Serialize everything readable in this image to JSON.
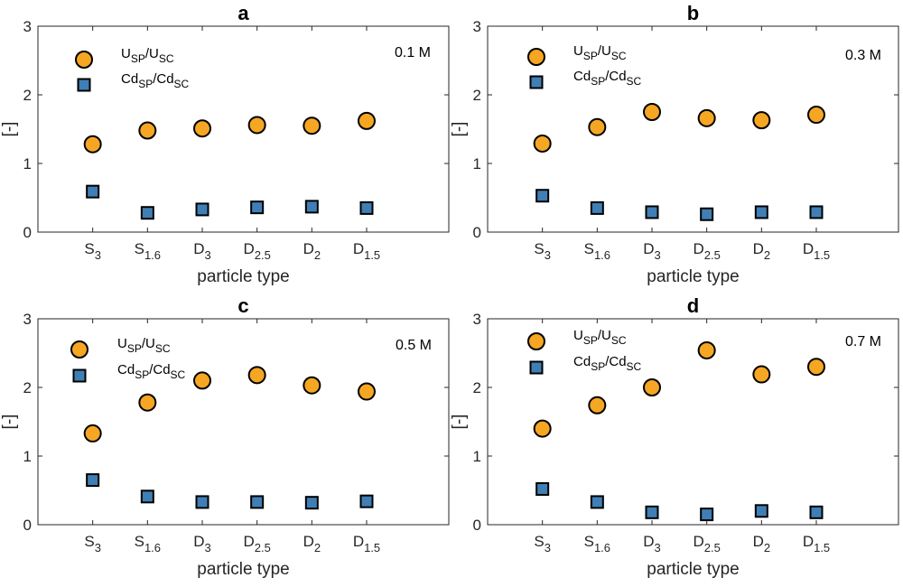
{
  "chart_data": [
    {
      "type": "scatter",
      "panel": "a",
      "title": "a",
      "annotation": "0.1 M",
      "xlabel": "particle type",
      "ylabel": "[-]",
      "ylim": [
        0,
        3
      ],
      "yticks": [
        "0",
        "1",
        "2",
        "3"
      ],
      "categories": [
        {
          "main": "S",
          "sub": "3"
        },
        {
          "main": "S",
          "sub": "1.6"
        },
        {
          "main": "D",
          "sub": "3"
        },
        {
          "main": "D",
          "sub": "2.5"
        },
        {
          "main": "D",
          "sub": "2"
        },
        {
          "main": "D",
          "sub": "1.5"
        }
      ],
      "series": [
        {
          "name": "U_SP/U_SC",
          "legend_main": [
            "U",
            "/U"
          ],
          "legend_sub": [
            "SP",
            "SC"
          ],
          "marker": "circle",
          "color": "#F5A623",
          "values": [
            1.28,
            1.48,
            1.51,
            1.56,
            1.55,
            1.62
          ]
        },
        {
          "name": "Cd_SP/Cd_SC",
          "legend_main": [
            "Cd",
            "/Cd"
          ],
          "legend_sub": [
            "SP",
            "SC"
          ],
          "marker": "square",
          "color": "#3F7FB5",
          "values": [
            0.59,
            0.28,
            0.33,
            0.36,
            0.37,
            0.35
          ]
        }
      ]
    },
    {
      "type": "scatter",
      "panel": "b",
      "title": "b",
      "annotation": "0.3 M",
      "xlabel": "particle type",
      "ylabel": "[-]",
      "ylim": [
        0,
        3
      ],
      "yticks": [
        "0",
        "1",
        "2",
        "3"
      ],
      "categories": [
        {
          "main": "S",
          "sub": "3"
        },
        {
          "main": "S",
          "sub": "1.6"
        },
        {
          "main": "D",
          "sub": "3"
        },
        {
          "main": "D",
          "sub": "2.5"
        },
        {
          "main": "D",
          "sub": "2"
        },
        {
          "main": "D",
          "sub": "1.5"
        }
      ],
      "series": [
        {
          "name": "U_SP/U_SC",
          "legend_main": [
            "U",
            "/U"
          ],
          "legend_sub": [
            "SP",
            "SC"
          ],
          "marker": "circle",
          "color": "#F5A623",
          "values": [
            1.29,
            1.53,
            1.75,
            1.66,
            1.63,
            1.71
          ]
        },
        {
          "name": "Cd_SP/Cd_SC",
          "legend_main": [
            "Cd",
            "/Cd"
          ],
          "legend_sub": [
            "SP",
            "SC"
          ],
          "marker": "square",
          "color": "#3F7FB5",
          "values": [
            0.53,
            0.35,
            0.29,
            0.26,
            0.29,
            0.29
          ]
        }
      ]
    },
    {
      "type": "scatter",
      "panel": "c",
      "title": "c",
      "annotation": "0.5 M",
      "xlabel": "particle type",
      "ylabel": "[-]",
      "ylim": [
        0,
        3
      ],
      "yticks": [
        "0",
        "1",
        "2",
        "3"
      ],
      "categories": [
        {
          "main": "S",
          "sub": "3"
        },
        {
          "main": "S",
          "sub": "1.6"
        },
        {
          "main": "D",
          "sub": "3"
        },
        {
          "main": "D",
          "sub": "2.5"
        },
        {
          "main": "D",
          "sub": "2"
        },
        {
          "main": "D",
          "sub": "1.5"
        }
      ],
      "series": [
        {
          "name": "U_SP/U_SC",
          "legend_main": [
            "U",
            "/U"
          ],
          "legend_sub": [
            "SP",
            "SC"
          ],
          "marker": "circle",
          "color": "#F5A623",
          "values": [
            1.33,
            1.78,
            2.1,
            2.18,
            2.03,
            1.94
          ]
        },
        {
          "name": "Cd_SP/Cd_SC",
          "legend_main": [
            "Cd",
            "/Cd"
          ],
          "legend_sub": [
            "SP",
            "SC"
          ],
          "marker": "square",
          "color": "#3F7FB5",
          "values": [
            0.65,
            0.41,
            0.33,
            0.33,
            0.32,
            0.34
          ]
        }
      ]
    },
    {
      "type": "scatter",
      "panel": "d",
      "title": "d",
      "annotation": "0.7 M",
      "xlabel": "particle type",
      "ylabel": "[-]",
      "ylim": [
        0,
        3
      ],
      "yticks": [
        "0",
        "1",
        "2",
        "3"
      ],
      "categories": [
        {
          "main": "S",
          "sub": "3"
        },
        {
          "main": "S",
          "sub": "1.6"
        },
        {
          "main": "D",
          "sub": "3"
        },
        {
          "main": "D",
          "sub": "2.5"
        },
        {
          "main": "D",
          "sub": "2"
        },
        {
          "main": "D",
          "sub": "1.5"
        }
      ],
      "series": [
        {
          "name": "U_SP/U_SC",
          "legend_main": [
            "U",
            "/U"
          ],
          "legend_sub": [
            "SP",
            "SC"
          ],
          "marker": "circle",
          "color": "#F5A623",
          "values": [
            1.4,
            1.74,
            2.0,
            2.54,
            2.19,
            2.3
          ]
        },
        {
          "name": "Cd_SP/Cd_SC",
          "legend_main": [
            "Cd",
            "/Cd"
          ],
          "legend_sub": [
            "SP",
            "SC"
          ],
          "marker": "square",
          "color": "#3F7FB5",
          "values": [
            0.52,
            0.33,
            0.18,
            0.15,
            0.2,
            0.18
          ]
        }
      ]
    }
  ]
}
